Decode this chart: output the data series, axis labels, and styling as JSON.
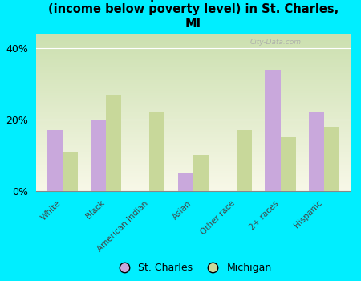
{
  "title": "Breakdown of poor residents within races\n(income below poverty level) in St. Charles,\nMI",
  "categories": [
    "White",
    "Black",
    "American Indian",
    "Asian",
    "Other race",
    "2+ races",
    "Hispanic"
  ],
  "st_charles": [
    17,
    20,
    0,
    5,
    0,
    34,
    22
  ],
  "michigan": [
    11,
    27,
    22,
    10,
    17,
    15,
    18
  ],
  "st_charles_color": "#c9a8dc",
  "michigan_color": "#c8d89a",
  "background_color": "#00eeff",
  "plot_bg_top": "#cce0b0",
  "plot_bg_bottom": "#f8f8e8",
  "yticks": [
    0,
    20,
    40
  ],
  "ylim": [
    0,
    44
  ],
  "bar_width": 0.35,
  "title_fontsize": 10.5,
  "legend_labels": [
    "St. Charles",
    "Michigan"
  ],
  "watermark": "City-Data.com"
}
